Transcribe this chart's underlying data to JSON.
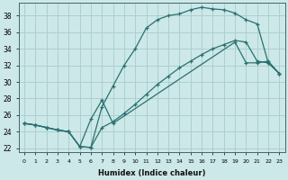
{
  "title": "",
  "xlabel": "Humidex (Indice chaleur)",
  "xlim": [
    -0.5,
    23.5
  ],
  "ylim": [
    21.5,
    39.5
  ],
  "xticks": [
    0,
    1,
    2,
    3,
    4,
    5,
    6,
    7,
    8,
    9,
    10,
    11,
    12,
    13,
    14,
    15,
    16,
    17,
    18,
    19,
    20,
    21,
    22,
    23
  ],
  "yticks": [
    22,
    24,
    26,
    28,
    30,
    32,
    34,
    36,
    38
  ],
  "background_color": "#cce8e8",
  "grid_color": "#aacccc",
  "line_color": "#2a7070",
  "curve1_x": [
    0,
    1,
    2,
    3,
    4,
    5,
    6,
    7,
    8,
    9,
    10,
    11,
    12,
    13,
    14,
    15,
    16,
    17,
    18,
    19,
    20,
    21,
    22,
    23
  ],
  "curve1_y": [
    25.0,
    24.8,
    24.5,
    24.2,
    24.0,
    22.2,
    22.1,
    27.0,
    29.5,
    32.0,
    34.0,
    36.5,
    37.5,
    38.0,
    38.2,
    38.7,
    39.0,
    38.8,
    38.7,
    38.3,
    37.5,
    37.0,
    32.3,
    31.0
  ],
  "curve2_x": [
    0,
    1,
    2,
    3,
    4,
    5,
    6,
    7,
    8,
    19,
    20,
    21,
    22,
    23
  ],
  "curve2_y": [
    25.0,
    24.8,
    24.5,
    24.2,
    24.0,
    22.2,
    25.5,
    27.8,
    25.0,
    34.8,
    32.3,
    32.3,
    32.5,
    31.0
  ],
  "curve3_x": [
    0,
    1,
    2,
    3,
    4,
    5,
    6,
    7,
    8,
    9,
    10,
    11,
    12,
    13,
    14,
    15,
    16,
    17,
    18,
    19,
    20,
    21,
    22,
    23
  ],
  "curve3_y": [
    25.0,
    24.8,
    24.5,
    24.2,
    24.0,
    22.2,
    22.1,
    24.5,
    25.2,
    26.2,
    27.3,
    28.5,
    29.7,
    30.7,
    31.7,
    32.5,
    33.3,
    34.0,
    34.5,
    35.0,
    34.8,
    32.5,
    32.3,
    31.0
  ]
}
